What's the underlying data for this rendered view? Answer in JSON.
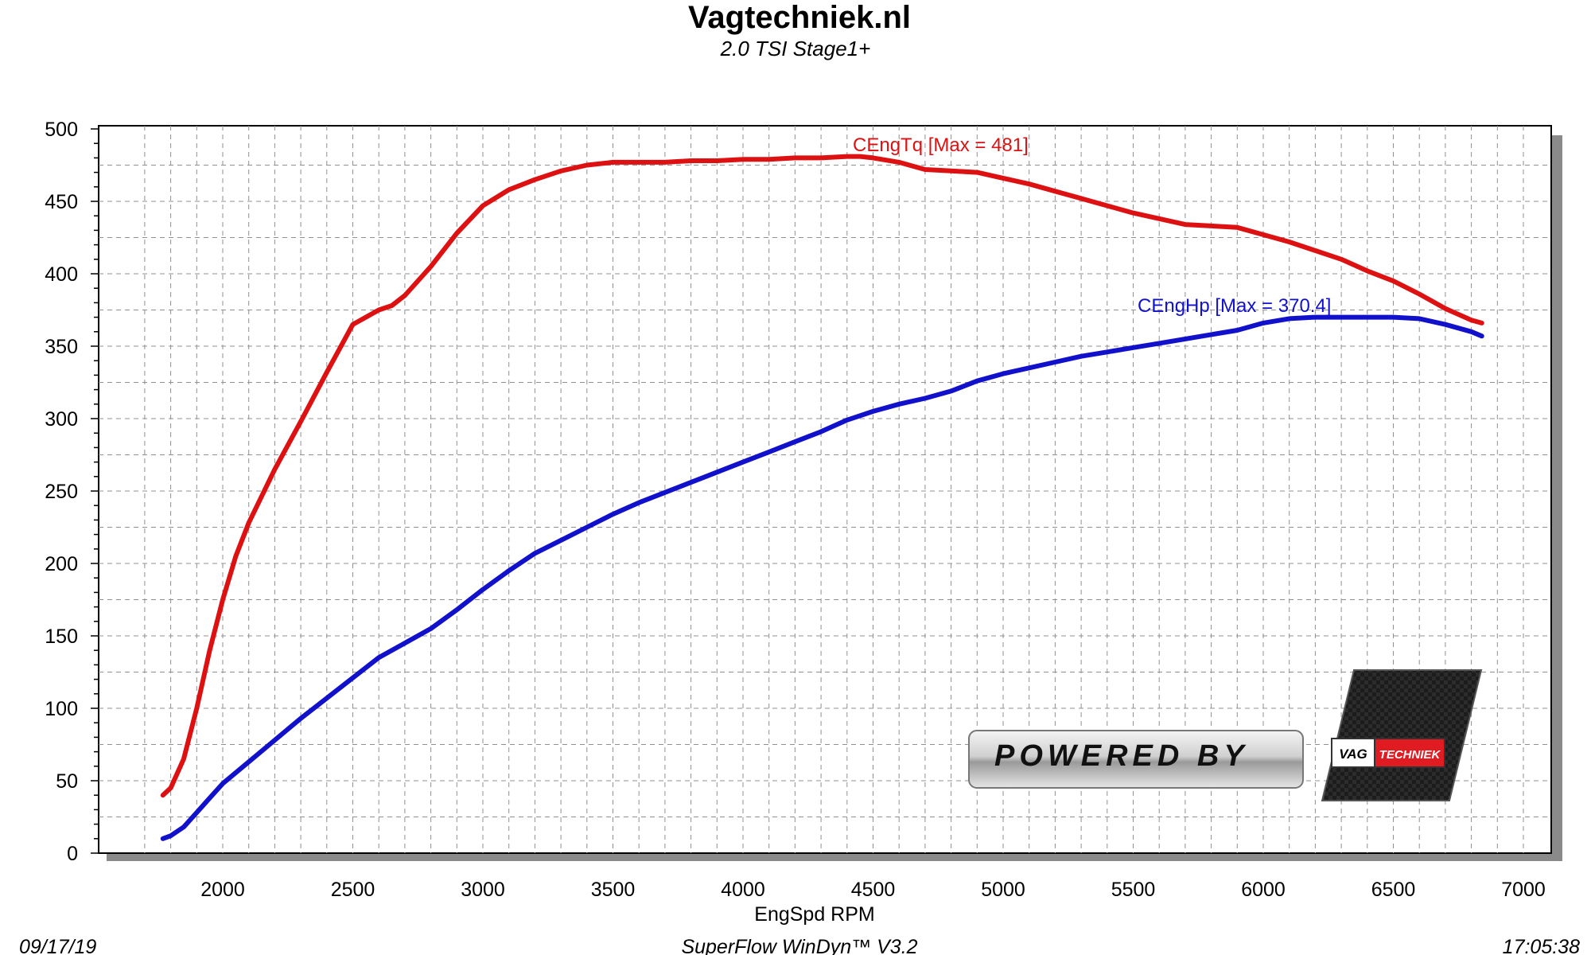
{
  "chart_data": {
    "type": "line",
    "title": "Vagtechniek.nl",
    "subtitle": "2.0 TSI Stage1+",
    "xlabel": "EngSpd RPM",
    "ylabel": "",
    "xlim": [
      1650,
      7100
    ],
    "ylim": [
      0,
      500
    ],
    "x_ticks": [
      2000,
      2500,
      3000,
      3500,
      4000,
      4500,
      5000,
      5500,
      6000,
      6500,
      7000
    ],
    "y_ticks": [
      0,
      50,
      100,
      150,
      200,
      250,
      300,
      350,
      400,
      450,
      500
    ],
    "grid": true,
    "legend": "none",
    "series": [
      {
        "name": "CEngTq",
        "label": "CEngTq [Max = 481]",
        "color": "#dd1111",
        "x": [
          1770,
          1800,
          1850,
          1900,
          1950,
          2000,
          2050,
          2100,
          2200,
          2300,
          2400,
          2500,
          2600,
          2650,
          2700,
          2800,
          2900,
          3000,
          3100,
          3200,
          3300,
          3400,
          3500,
          3600,
          3700,
          3800,
          3900,
          4000,
          4100,
          4200,
          4300,
          4400,
          4450,
          4500,
          4600,
          4700,
          4800,
          4900,
          5000,
          5100,
          5200,
          5300,
          5400,
          5500,
          5600,
          5700,
          5800,
          5900,
          6000,
          6100,
          6200,
          6300,
          6400,
          6500,
          6600,
          6700,
          6800,
          6840
        ],
        "y": [
          40,
          45,
          65,
          100,
          140,
          175,
          205,
          228,
          265,
          298,
          332,
          365,
          375,
          378,
          385,
          405,
          428,
          447,
          458,
          465,
          471,
          475,
          477,
          477,
          477,
          478,
          478,
          479,
          479,
          480,
          480,
          481,
          481,
          480,
          477,
          472,
          471,
          470,
          466,
          462,
          457,
          452,
          447,
          442,
          438,
          434,
          433,
          432,
          427,
          422,
          416,
          410,
          402,
          395,
          386,
          376,
          368,
          366
        ]
      },
      {
        "name": "CEngHp",
        "label": "CEngHp [Max = 370.4]",
        "color": "#1111cc",
        "x": [
          1770,
          1800,
          1850,
          1900,
          1950,
          2000,
          2100,
          2200,
          2300,
          2400,
          2500,
          2600,
          2700,
          2800,
          2900,
          3000,
          3100,
          3200,
          3300,
          3400,
          3500,
          3600,
          3700,
          3800,
          3900,
          4000,
          4100,
          4200,
          4300,
          4400,
          4500,
          4600,
          4700,
          4800,
          4900,
          5000,
          5100,
          5200,
          5300,
          5400,
          5500,
          5600,
          5700,
          5800,
          5900,
          6000,
          6100,
          6200,
          6300,
          6400,
          6500,
          6600,
          6700,
          6800,
          6840
        ],
        "y": [
          10,
          12,
          18,
          28,
          38,
          48,
          63,
          78,
          93,
          107,
          121,
          135,
          145,
          155,
          168,
          182,
          195,
          207,
          216,
          225,
          234,
          242,
          249,
          256,
          263,
          270,
          277,
          284,
          291,
          299,
          305,
          310,
          314,
          319,
          326,
          331,
          335,
          339,
          343,
          346,
          349,
          352,
          355,
          358,
          361,
          366,
          369,
          370,
          370,
          370,
          370,
          369,
          365,
          360,
          357
        ]
      }
    ]
  },
  "footer": {
    "date": "09/17/19",
    "software": "SuperFlow WinDyn™  V3.2",
    "time": "17:05:38"
  },
  "logo": {
    "powered_by": "POWERED BY",
    "vag": "VAG",
    "techniek": "TECHNIEK",
    "accent_color": "#e01b22"
  }
}
